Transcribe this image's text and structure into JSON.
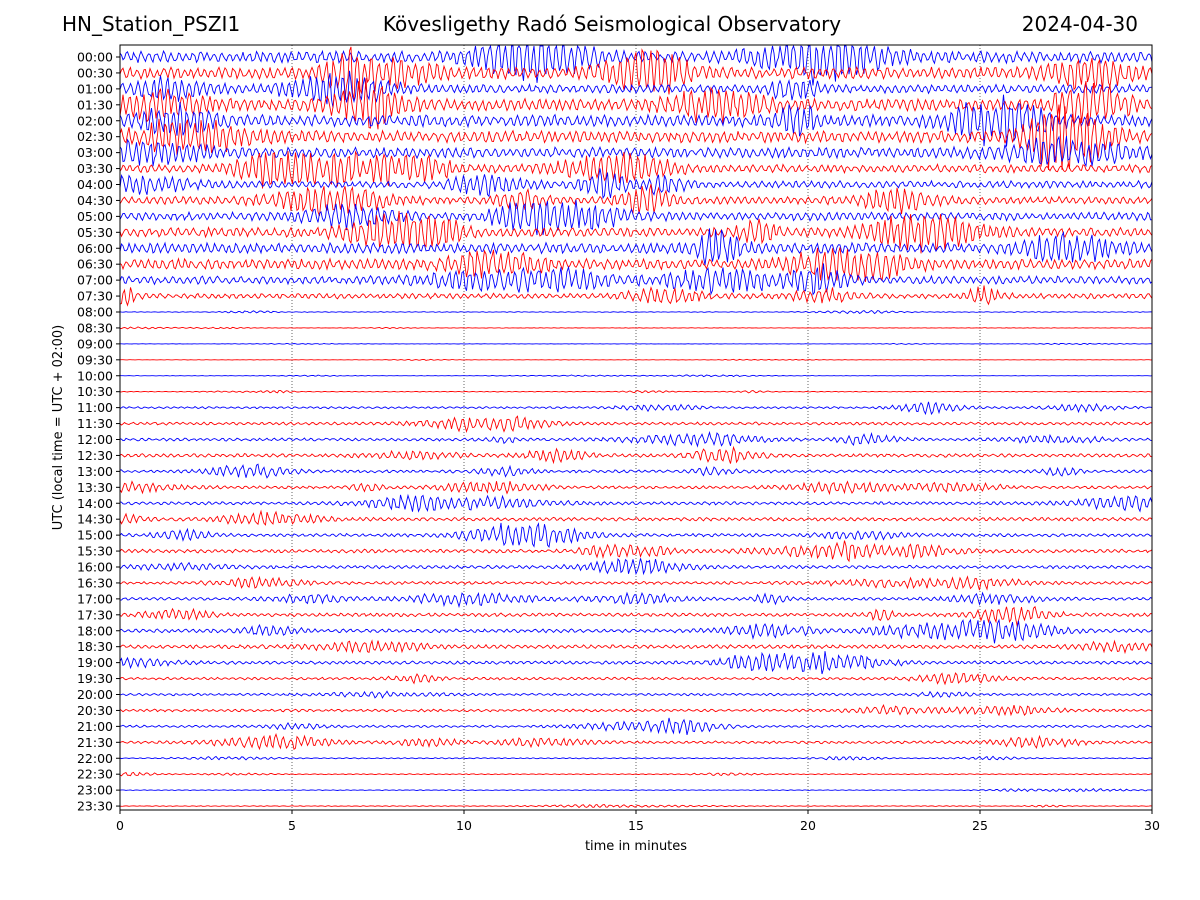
{
  "header": {
    "station": "HN_Station_PSZI1",
    "observatory": "Kövesligethy Radó Seismological Observatory",
    "date": "2024-04-30"
  },
  "colors": {
    "even_trace": "#0000ff",
    "odd_trace": "#ff0000",
    "grid": "#000000"
  },
  "chart_data": {
    "type": "line",
    "chart_kind": "helicorder",
    "xlabel": "time in minutes",
    "ylabel": "UTC (local time = UTC + 02:00)",
    "xlim": [
      0,
      30
    ],
    "x_ticks": [
      "0",
      "5",
      "10",
      "15",
      "20",
      "25",
      "30"
    ],
    "grid": "vertical dotted lines at 5-minute intervals",
    "row_labels": [
      "00:00",
      "00:30",
      "01:00",
      "01:30",
      "02:00",
      "02:30",
      "03:00",
      "03:30",
      "04:00",
      "04:30",
      "05:00",
      "05:30",
      "06:00",
      "06:30",
      "07:00",
      "07:30",
      "08:00",
      "08:30",
      "09:00",
      "09:30",
      "10:00",
      "10:30",
      "11:00",
      "11:30",
      "12:00",
      "12:30",
      "13:00",
      "13:30",
      "14:00",
      "14:30",
      "15:00",
      "15:30",
      "16:00",
      "16:30",
      "17:00",
      "17:30",
      "18:00",
      "18:30",
      "19:00",
      "19:30",
      "20:00",
      "20:30",
      "21:00",
      "21:30",
      "22:00",
      "22:30",
      "23:00",
      "23:30"
    ],
    "trace_colors": "alternating blue (on the hour) and red (on the half hour)",
    "relative_amplitude": [
      2.0,
      2.0,
      1.5,
      2.0,
      2.0,
      2.0,
      1.8,
      1.4,
      1.2,
      1.3,
      1.4,
      1.6,
      1.8,
      1.8,
      1.4,
      0.9,
      0.12,
      0.08,
      0.05,
      0.05,
      0.05,
      0.1,
      0.35,
      0.5,
      0.5,
      0.6,
      0.5,
      0.5,
      0.55,
      0.6,
      0.55,
      0.6,
      0.55,
      0.5,
      0.5,
      0.6,
      0.65,
      0.65,
      0.55,
      0.45,
      0.4,
      0.45,
      0.4,
      0.45,
      0.18,
      0.15,
      0.12,
      0.12
    ]
  }
}
